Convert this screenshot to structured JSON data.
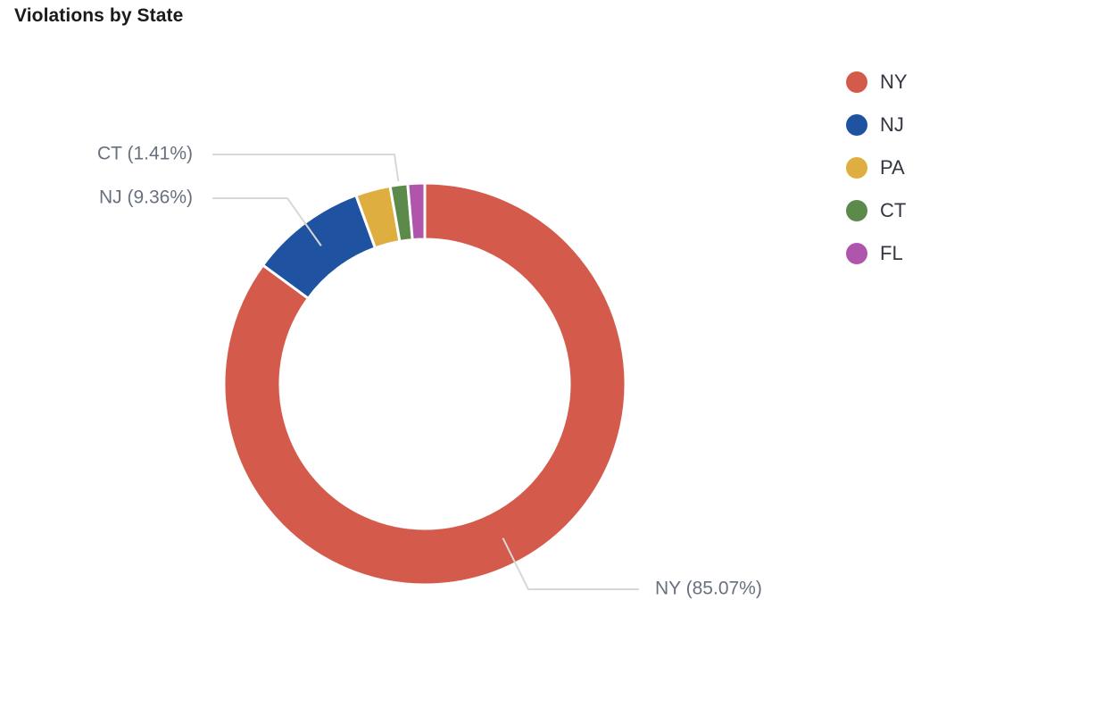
{
  "chart_data": {
    "type": "pie",
    "title": "Violations by State",
    "donut": true,
    "legend_position": "top-right",
    "slices": [
      {
        "label": "NY",
        "value": 85.07,
        "color": "#d45b4c",
        "callout": "NY (85.07%)"
      },
      {
        "label": "NJ",
        "value": 9.36,
        "color": "#1f52a0",
        "callout": "NJ (9.36%)"
      },
      {
        "label": "PA",
        "value": 2.8,
        "color": "#dfae40",
        "callout": ""
      },
      {
        "label": "CT",
        "value": 1.41,
        "color": "#5c8a4b",
        "callout": "CT (1.41%)"
      },
      {
        "label": "FL",
        "value": 1.36,
        "color": "#b055ac",
        "callout": ""
      }
    ]
  }
}
